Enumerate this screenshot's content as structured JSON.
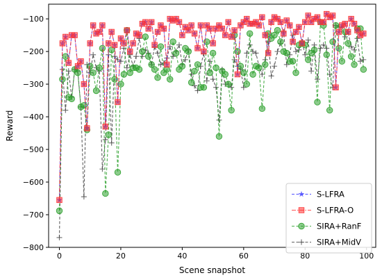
{
  "chart_data": {
    "type": "line",
    "title": "",
    "xlabel": "Scene snapshot",
    "ylabel": "Reward",
    "xlim": [
      -3.5,
      103
    ],
    "ylim": [
      -800,
      -55
    ],
    "xticks": [
      0,
      20,
      40,
      60,
      80,
      100
    ],
    "yticks": [
      -800,
      -700,
      -600,
      -500,
      -400,
      -300,
      -200,
      -100
    ],
    "grid": false,
    "legend_position": "lower right",
    "x": [
      0,
      1,
      2,
      3,
      4,
      5,
      6,
      7,
      8,
      9,
      10,
      11,
      12,
      13,
      14,
      15,
      16,
      17,
      18,
      19,
      20,
      21,
      22,
      23,
      24,
      25,
      26,
      27,
      28,
      29,
      30,
      31,
      32,
      33,
      34,
      35,
      36,
      37,
      38,
      39,
      40,
      41,
      42,
      43,
      44,
      45,
      46,
      47,
      48,
      49,
      50,
      51,
      52,
      53,
      54,
      55,
      56,
      57,
      58,
      59,
      60,
      61,
      62,
      63,
      64,
      65,
      66,
      67,
      68,
      69,
      70,
      71,
      72,
      73,
      74,
      75,
      76,
      77,
      78,
      79,
      80,
      81,
      82,
      83,
      84,
      85,
      86,
      87,
      88,
      89,
      90,
      91,
      92,
      93,
      94,
      95,
      96,
      97,
      98,
      99
    ],
    "series": [
      {
        "name": "S-LFRA",
        "color": "#3333ff",
        "linestyle": "dashed",
        "marker": "star",
        "values": [
          -655,
          -175,
          -155,
          -235,
          -150,
          -150,
          -245,
          -230,
          -300,
          -435,
          -175,
          -120,
          -145,
          -140,
          -120,
          -430,
          -175,
          -140,
          -180,
          -355,
          -160,
          -175,
          -135,
          -200,
          -175,
          -145,
          -150,
          -115,
          -110,
          -130,
          -110,
          -180,
          -140,
          -120,
          -130,
          -240,
          -100,
          -105,
          -100,
          -110,
          -150,
          -125,
          -135,
          -120,
          -145,
          -190,
          -120,
          -200,
          -120,
          -130,
          -175,
          -130,
          -120,
          -130,
          -150,
          -110,
          -155,
          -135,
          -270,
          -120,
          -110,
          -100,
          -115,
          -115,
          -110,
          -120,
          -95,
          -150,
          -205,
          -110,
          -95,
          -100,
          -110,
          -145,
          -105,
          -120,
          -170,
          -140,
          -125,
          -175,
          -110,
          -90,
          -110,
          -100,
          -95,
          -110,
          -110,
          -85,
          -95,
          -90,
          -310,
          -140,
          -120,
          -115,
          -140,
          -100,
          -115,
          -135,
          -150,
          -145
        ]
      },
      {
        "name": "S-LFRA-O",
        "color": "#ff3333",
        "linestyle": "dashdot",
        "marker": "square",
        "values": [
          -655,
          -175,
          -155,
          -235,
          -150,
          -150,
          -245,
          -230,
          -300,
          -435,
          -175,
          -120,
          -145,
          -140,
          -120,
          -430,
          -175,
          -140,
          -180,
          -355,
          -160,
          -175,
          -135,
          -200,
          -175,
          -145,
          -150,
          -115,
          -110,
          -130,
          -110,
          -180,
          -140,
          -120,
          -130,
          -240,
          -100,
          -105,
          -100,
          -110,
          -150,
          -125,
          -135,
          -120,
          -145,
          -190,
          -120,
          -200,
          -120,
          -130,
          -175,
          -130,
          -120,
          -130,
          -150,
          -110,
          -155,
          -135,
          -270,
          -120,
          -110,
          -100,
          -115,
          -115,
          -110,
          -120,
          -95,
          -150,
          -205,
          -110,
          -95,
          -100,
          -110,
          -145,
          -105,
          -120,
          -170,
          -140,
          -125,
          -175,
          -110,
          -90,
          -110,
          -100,
          -95,
          -110,
          -110,
          -85,
          -95,
          -90,
          -310,
          -140,
          -120,
          -115,
          -140,
          -100,
          -115,
          -135,
          -150,
          -145
        ]
      },
      {
        "name": "SIRA+RanF",
        "color": "#2ca02c",
        "linestyle": "dashed",
        "marker": "circle",
        "values": [
          -688,
          -285,
          -215,
          -340,
          -345,
          -255,
          -265,
          -370,
          -365,
          -440,
          -245,
          -265,
          -320,
          -250,
          -190,
          -635,
          -455,
          -195,
          -285,
          -570,
          -300,
          -270,
          -135,
          -265,
          -250,
          -250,
          -255,
          -200,
          -155,
          -215,
          -240,
          -255,
          -280,
          -185,
          -265,
          -255,
          -285,
          -170,
          -205,
          -255,
          -245,
          -190,
          -200,
          -295,
          -260,
          -240,
          -310,
          -310,
          -170,
          -265,
          -205,
          -250,
          -460,
          -260,
          -270,
          -300,
          -380,
          -150,
          -200,
          -245,
          -265,
          -300,
          -145,
          -270,
          -245,
          -250,
          -375,
          -240,
          -145,
          -160,
          -150,
          -135,
          -170,
          -200,
          -205,
          -230,
          -230,
          -265,
          -180,
          -175,
          -180,
          -225,
          -205,
          -195,
          -355,
          -110,
          -120,
          -210,
          -380,
          -170,
          -120,
          -190,
          -230,
          -140,
          -175,
          -215,
          -240,
          -130,
          -130,
          -255
        ]
      },
      {
        "name": "SIRA+MidV",
        "color": "#444444",
        "linestyle": "dashed",
        "marker": "plus",
        "values": [
          -770,
          -255,
          -380,
          -260,
          -340,
          -255,
          -260,
          -370,
          -645,
          -240,
          -265,
          -210,
          -250,
          -260,
          -560,
          -470,
          -210,
          -480,
          -215,
          -225,
          -230,
          -190,
          -250,
          -210,
          -245,
          -215,
          -160,
          -215,
          -195,
          -205,
          -240,
          -185,
          -205,
          -240,
          -235,
          -220,
          -185,
          -215,
          -200,
          -180,
          -240,
          -225,
          -195,
          -270,
          -305,
          -320,
          -245,
          -205,
          -290,
          -230,
          -285,
          -310,
          -410,
          -255,
          -300,
          -300,
          -310,
          -225,
          -245,
          -255,
          -310,
          -205,
          -180,
          -200,
          -205,
          -245,
          -270,
          -225,
          -170,
          -275,
          -245,
          -200,
          -175,
          -140,
          -240,
          -210,
          -150,
          -200,
          -195,
          -170,
          -210,
          -165,
          -260,
          -180,
          -285,
          -190,
          -180,
          -190,
          -270,
          -310,
          -120,
          -125,
          -125,
          -155,
          -140,
          -185,
          -195,
          -160,
          -230,
          -225
        ]
      }
    ]
  }
}
